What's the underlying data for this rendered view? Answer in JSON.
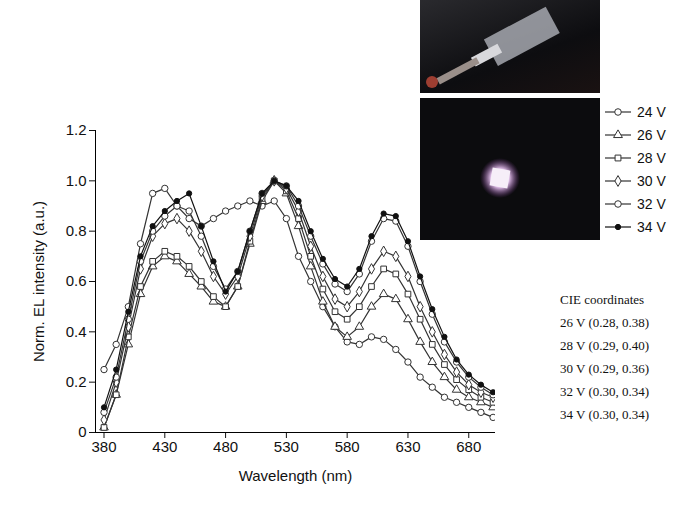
{
  "chart_data": {
    "type": "line",
    "x_label": "Wavelength (nm)",
    "y_label": "Norm. EL intensity (a.u.)",
    "x": [
      380,
      390,
      400,
      410,
      420,
      430,
      440,
      450,
      460,
      470,
      480,
      490,
      500,
      510,
      520,
      530,
      540,
      550,
      560,
      570,
      580,
      590,
      600,
      610,
      620,
      630,
      640,
      650,
      660,
      670,
      680,
      690,
      700
    ],
    "series": [
      {
        "name": "24 V",
        "color": "#333333",
        "marker": "circle",
        "line_style": "solid",
        "values": [
          0.25,
          0.35,
          0.5,
          0.75,
          0.95,
          0.97,
          0.9,
          0.85,
          0.82,
          0.85,
          0.88,
          0.9,
          0.92,
          0.9,
          0.92,
          0.85,
          0.7,
          0.6,
          0.5,
          0.42,
          0.36,
          0.35,
          0.38,
          0.37,
          0.33,
          0.28,
          0.22,
          0.18,
          0.14,
          0.12,
          0.1,
          0.08,
          0.06
        ]
      },
      {
        "name": "26 V",
        "color": "#333333",
        "marker": "triangle",
        "line_style": "solid",
        "values": [
          0.02,
          0.15,
          0.35,
          0.55,
          0.66,
          0.7,
          0.68,
          0.63,
          0.58,
          0.52,
          0.5,
          0.58,
          0.75,
          0.92,
          1.0,
          0.95,
          0.82,
          0.66,
          0.52,
          0.42,
          0.38,
          0.42,
          0.5,
          0.55,
          0.53,
          0.45,
          0.36,
          0.28,
          0.22,
          0.17,
          0.14,
          0.12,
          0.1
        ]
      },
      {
        "name": "28 V",
        "color": "#333333",
        "marker": "square",
        "line_style": "solid",
        "values": [
          0.02,
          0.15,
          0.38,
          0.58,
          0.68,
          0.72,
          0.7,
          0.66,
          0.6,
          0.54,
          0.5,
          0.58,
          0.76,
          0.93,
          1.0,
          0.96,
          0.85,
          0.7,
          0.57,
          0.48,
          0.45,
          0.5,
          0.58,
          0.65,
          0.63,
          0.55,
          0.45,
          0.35,
          0.27,
          0.21,
          0.17,
          0.14,
          0.12
        ]
      },
      {
        "name": "30 V",
        "color": "#333333",
        "marker": "diamond",
        "line_style": "solid",
        "values": [
          0.05,
          0.2,
          0.42,
          0.65,
          0.78,
          0.83,
          0.85,
          0.8,
          0.72,
          0.62,
          0.55,
          0.62,
          0.78,
          0.94,
          1.0,
          0.97,
          0.88,
          0.74,
          0.62,
          0.53,
          0.5,
          0.56,
          0.65,
          0.72,
          0.7,
          0.62,
          0.5,
          0.4,
          0.31,
          0.24,
          0.19,
          0.16,
          0.14
        ]
      },
      {
        "name": "32 V",
        "color": "#333333",
        "marker": "circle",
        "line_style": "solid",
        "values": [
          0.08,
          0.22,
          0.45,
          0.68,
          0.8,
          0.86,
          0.9,
          0.88,
          0.78,
          0.66,
          0.57,
          0.64,
          0.8,
          0.95,
          1.0,
          0.98,
          0.9,
          0.78,
          0.67,
          0.59,
          0.56,
          0.63,
          0.76,
          0.85,
          0.84,
          0.74,
          0.6,
          0.47,
          0.36,
          0.28,
          0.22,
          0.18,
          0.15
        ]
      },
      {
        "name": "34 V",
        "color": "#111111",
        "marker": "dot",
        "line_style": "solid",
        "values": [
          0.1,
          0.25,
          0.48,
          0.7,
          0.82,
          0.88,
          0.92,
          0.95,
          0.82,
          0.68,
          0.56,
          0.64,
          0.8,
          0.95,
          1.0,
          0.98,
          0.92,
          0.8,
          0.69,
          0.61,
          0.58,
          0.65,
          0.78,
          0.87,
          0.86,
          0.76,
          0.62,
          0.49,
          0.38,
          0.29,
          0.23,
          0.19,
          0.16
        ]
      }
    ],
    "xlim": [
      373,
      702
    ],
    "xticks": [
      380,
      430,
      480,
      530,
      580,
      630,
      680
    ],
    "ylim": [
      0,
      1.2
    ],
    "yticks": [
      0,
      0.2,
      0.4,
      0.6,
      0.8,
      {
        "value": 1,
        "label": "1.0"
      },
      1.2
    ],
    "grid": false,
    "legend": "right",
    "annotations": [
      "CIE coordinates",
      "26 V (0.28, 0.38)",
      "28 V (0.29, 0.40)",
      "30 V (0.29, 0.36)",
      "32 V (0.30, 0.34)",
      "34 V (0.30, 0.34)"
    ]
  }
}
